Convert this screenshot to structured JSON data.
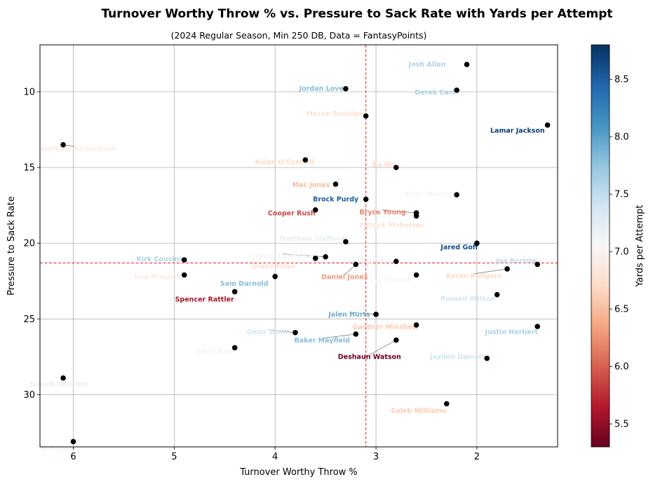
{
  "chart_data": {
    "type": "scatter",
    "title": "Turnover Worthy Throw % vs. Pressure to Sack Rate with Yards per Attempt",
    "subtitle": "(2024 Regular Season, Min 250 DB, Data = FantasyPoints)",
    "xlabel": "Turnover Worthy Throw %",
    "ylabel": "Pressure to Sack Rate",
    "colorbar_label": "Yards per Attempt",
    "xlim": [
      6.33,
      1.2
    ],
    "ylim": [
      33.45,
      6.9
    ],
    "x_inverted": true,
    "y_inverted": true,
    "x_ticks": [
      6,
      5,
      4,
      3,
      2
    ],
    "y_ticks": [
      10,
      15,
      20,
      25,
      30
    ],
    "colorbar_range": [
      5.3,
      8.8
    ],
    "colorbar_ticks": [
      5.5,
      6.0,
      6.5,
      7.0,
      7.5,
      8.0,
      8.5
    ],
    "colormap": "RdBu",
    "grid": true,
    "reference_lines": {
      "x": 3.1,
      "y": 21.3,
      "color": "#e41a1c",
      "style": "dashed"
    },
    "points": [
      {
        "name": "Josh Allen",
        "x": 2.1,
        "y": 8.2,
        "ypa": 7.6
      },
      {
        "name": "Jordan Love",
        "x": 3.3,
        "y": 9.8,
        "ypa": 7.8
      },
      {
        "name": "Derek Carr",
        "x": 2.2,
        "y": 9.9,
        "ypa": 7.6
      },
      {
        "name": "Mason Rudolph",
        "x": 3.1,
        "y": 11.6,
        "ypa": 6.8
      },
      {
        "name": "Lamar Jackson",
        "x": 1.3,
        "y": 12.2,
        "ypa": 8.7
      },
      {
        "name": "Anthony Richardson",
        "x": 6.1,
        "y": 13.5,
        "ypa": 6.9
      },
      {
        "name": "Aidan O'Connell",
        "x": 3.7,
        "y": 14.5,
        "ypa": 6.7
      },
      {
        "name": "Bo Nix",
        "x": 2.8,
        "y": 15.0,
        "ypa": 6.7
      },
      {
        "name": "Mac Jones",
        "x": 3.4,
        "y": 16.1,
        "ypa": 6.5
      },
      {
        "name": "Kyler Murray",
        "x": 2.2,
        "y": 16.8,
        "ypa": 7.0
      },
      {
        "name": "Brock Purdy",
        "x": 3.1,
        "y": 17.1,
        "ypa": 8.5
      },
      {
        "name": "Cooper Rush",
        "x": 3.6,
        "y": 17.8,
        "ypa": 5.9
      },
      {
        "name": "Bryce Young",
        "x": 2.6,
        "y": 18.0,
        "ypa": 6.2
      },
      {
        "name": "Patrick Mahomes",
        "x": 2.6,
        "y": 18.2,
        "ypa": 6.8
      },
      {
        "name": "Matthew Stafford",
        "x": 3.3,
        "y": 19.9,
        "ypa": 7.2
      },
      {
        "name": "Jared Goff",
        "x": 2.0,
        "y": 20.0,
        "ypa": 8.6
      },
      {
        "name": "Kirk Cousins",
        "x": 4.9,
        "y": 21.1,
        "ypa": 7.6
      },
      {
        "name": "Trevor Lawrence",
        "x": 3.5,
        "y": 20.9,
        "ypa": 7.1
      },
      {
        "name": "Drake Maye",
        "x": 3.6,
        "y": 21.0,
        "ypa": 6.8
      },
      {
        "name": "Tua Tagovailoa",
        "x": 2.8,
        "y": 21.2,
        "ypa": 7.1
      },
      {
        "name": "Daniel Jones",
        "x": 3.2,
        "y": 21.4,
        "ypa": 6.3
      },
      {
        "name": "Joe Burrow",
        "x": 1.4,
        "y": 21.4,
        "ypa": 7.5
      },
      {
        "name": "Aaron Rodgers",
        "x": 1.7,
        "y": 21.7,
        "ypa": 6.7
      },
      {
        "name": "Dak Prescott",
        "x": 4.9,
        "y": 22.1,
        "ypa": 6.9
      },
      {
        "name": "Sam Darnold",
        "x": 4.0,
        "y": 22.2,
        "ypa": 7.8
      },
      {
        "name": "C.J. Stroud",
        "x": 2.6,
        "y": 22.1,
        "ypa": 7.1
      },
      {
        "name": "Spencer Rattler",
        "x": 4.4,
        "y": 23.2,
        "ypa": 5.6
      },
      {
        "name": "Russell Wilson",
        "x": 1.8,
        "y": 23.4,
        "ypa": 7.4
      },
      {
        "name": "Jalen Hurts",
        "x": 3.0,
        "y": 24.7,
        "ypa": 7.9
      },
      {
        "name": "Gardner Minshew",
        "x": 2.6,
        "y": 25.4,
        "ypa": 6.6
      },
      {
        "name": "Justin Herbert",
        "x": 1.4,
        "y": 25.5,
        "ypa": 7.6
      },
      {
        "name": "Geno Smith",
        "x": 3.8,
        "y": 25.9,
        "ypa": 7.4
      },
      {
        "name": "Baker Mayfield",
        "x": 3.2,
        "y": 26.0,
        "ypa": 7.8
      },
      {
        "name": "Deshaun Watson",
        "x": 2.8,
        "y": 26.4,
        "ypa": 5.3
      },
      {
        "name": "Joe Flacco",
        "x": 4.4,
        "y": 26.9,
        "ypa": 7.0
      },
      {
        "name": "Jayden Daniels",
        "x": 1.9,
        "y": 27.6,
        "ypa": 7.4
      },
      {
        "name": "Jameis Winston",
        "x": 6.1,
        "y": 28.9,
        "ypa": 7.2
      },
      {
        "name": "Caleb Williams",
        "x": 2.3,
        "y": 30.6,
        "ypa": 6.6
      },
      {
        "name": "Will Levis",
        "x": 6.0,
        "y": 33.1,
        "ypa": 6.9
      }
    ]
  }
}
